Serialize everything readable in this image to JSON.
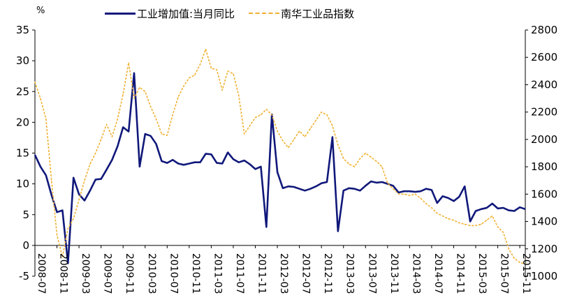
{
  "chart_data": {
    "type": "line",
    "y_unit_label": "%",
    "legend_position": "top",
    "grid": false,
    "x_tick_labels": [
      "2008-07",
      "2008-11",
      "2009-03",
      "2009-07",
      "2009-11",
      "2010-03",
      "2010-07",
      "2010-11",
      "2011-03",
      "2011-07",
      "2011-11",
      "2012-03",
      "2012-07",
      "2012-11",
      "2013-03",
      "2013-07",
      "2013-11",
      "2014-03",
      "2014-07",
      "2014-11",
      "2015-03",
      "2015-07",
      "2015-11"
    ],
    "y_left": {
      "lim": [
        -5,
        35
      ],
      "ticks": [
        -5,
        0,
        5,
        10,
        15,
        20,
        25,
        30,
        35
      ]
    },
    "y_right": {
      "lim": [
        1000,
        2800
      ],
      "ticks": [
        1000,
        1200,
        1400,
        1600,
        1800,
        2000,
        2200,
        2400,
        2600,
        2800
      ]
    },
    "series": [
      {
        "name": "工业增加值:当月同比",
        "axis": "left",
        "color": "#10187a",
        "style": "solid",
        "x": [
          "2008-07",
          "2008-08",
          "2008-09",
          "2008-10",
          "2008-11",
          "2008-12",
          "2009-01",
          "2009-02",
          "2009-03",
          "2009-04",
          "2009-05",
          "2009-06",
          "2009-07",
          "2009-08",
          "2009-09",
          "2009-10",
          "2009-11",
          "2009-12",
          "2010-01",
          "2010-02",
          "2010-03",
          "2010-04",
          "2010-05",
          "2010-06",
          "2010-07",
          "2010-08",
          "2010-09",
          "2010-10",
          "2010-11",
          "2010-12",
          "2011-01",
          "2011-02",
          "2011-03",
          "2011-04",
          "2011-05",
          "2011-06",
          "2011-07",
          "2011-08",
          "2011-09",
          "2011-10",
          "2011-11",
          "2011-12",
          "2012-01",
          "2012-02",
          "2012-03",
          "2012-04",
          "2012-05",
          "2012-06",
          "2012-07",
          "2012-08",
          "2012-09",
          "2012-10",
          "2012-11",
          "2012-12",
          "2013-01",
          "2013-02",
          "2013-03",
          "2013-04",
          "2013-05",
          "2013-06",
          "2013-07",
          "2013-08",
          "2013-09",
          "2013-10",
          "2013-11",
          "2013-12",
          "2014-01",
          "2014-02",
          "2014-03",
          "2014-04",
          "2014-05",
          "2014-06",
          "2014-07",
          "2014-08",
          "2014-09",
          "2014-10",
          "2014-11",
          "2014-12",
          "2015-01",
          "2015-02",
          "2015-03",
          "2015-04",
          "2015-05",
          "2015-06",
          "2015-07",
          "2015-08",
          "2015-09",
          "2015-10",
          "2015-11",
          "2015-12"
        ],
        "values": [
          14.7,
          12.8,
          11.4,
          8.2,
          5.4,
          5.7,
          -2.9,
          11.0,
          8.3,
          7.3,
          8.9,
          10.7,
          10.8,
          12.3,
          13.9,
          16.1,
          19.2,
          18.5,
          28.0,
          12.8,
          18.1,
          17.8,
          16.5,
          13.7,
          13.4,
          13.9,
          13.3,
          13.1,
          13.3,
          13.5,
          13.5,
          14.9,
          14.8,
          13.4,
          13.3,
          15.1,
          14.0,
          13.5,
          13.8,
          13.2,
          12.4,
          12.8,
          3.0,
          21.3,
          11.9,
          9.3,
          9.6,
          9.5,
          9.2,
          8.9,
          9.2,
          9.6,
          10.1,
          10.3,
          17.6,
          2.3,
          8.9,
          9.3,
          9.2,
          8.9,
          9.7,
          10.4,
          10.2,
          10.3,
          10.0,
          9.7,
          8.6,
          8.8,
          8.8,
          8.7,
          8.8,
          9.2,
          9.0,
          6.9,
          8.0,
          7.7,
          7.2,
          7.9,
          9.6,
          3.9,
          5.6,
          5.9,
          6.1,
          6.8,
          6.0,
          6.1,
          5.7,
          5.6,
          6.2,
          5.9
        ]
      },
      {
        "name": "南华工业品指数",
        "axis": "right",
        "color": "#f0b030",
        "style": "dashed",
        "x": [
          "2008-07",
          "2008-08",
          "2008-09",
          "2008-10",
          "2008-11",
          "2008-12",
          "2009-01",
          "2009-02",
          "2009-03",
          "2009-04",
          "2009-05",
          "2009-06",
          "2009-07",
          "2009-08",
          "2009-09",
          "2009-10",
          "2009-11",
          "2009-12",
          "2010-01",
          "2010-02",
          "2010-03",
          "2010-04",
          "2010-05",
          "2010-06",
          "2010-07",
          "2010-08",
          "2010-09",
          "2010-10",
          "2010-11",
          "2010-12",
          "2011-01",
          "2011-02",
          "2011-03",
          "2011-04",
          "2011-05",
          "2011-06",
          "2011-07",
          "2011-08",
          "2011-09",
          "2011-10",
          "2011-11",
          "2011-12",
          "2012-01",
          "2012-02",
          "2012-03",
          "2012-04",
          "2012-05",
          "2012-06",
          "2012-07",
          "2012-08",
          "2012-09",
          "2012-10",
          "2012-11",
          "2012-12",
          "2013-01",
          "2013-02",
          "2013-03",
          "2013-04",
          "2013-05",
          "2013-06",
          "2013-07",
          "2013-08",
          "2013-09",
          "2013-10",
          "2013-11",
          "2013-12",
          "2014-01",
          "2014-02",
          "2014-03",
          "2014-04",
          "2014-05",
          "2014-06",
          "2014-07",
          "2014-08",
          "2014-09",
          "2014-10",
          "2014-11",
          "2014-12",
          "2015-01",
          "2015-02",
          "2015-03",
          "2015-04",
          "2015-05",
          "2015-06",
          "2015-07",
          "2015-08",
          "2015-09",
          "2015-10",
          "2015-11",
          "2015-12"
        ],
        "values": [
          2420,
          2300,
          2150,
          1700,
          1300,
          1140,
          1350,
          1420,
          1560,
          1700,
          1820,
          1900,
          2000,
          2110,
          2020,
          2150,
          2330,
          2560,
          2300,
          2380,
          2350,
          2240,
          2150,
          2040,
          2030,
          2180,
          2310,
          2390,
          2450,
          2470,
          2550,
          2660,
          2520,
          2510,
          2360,
          2500,
          2480,
          2320,
          2040,
          2100,
          2160,
          2180,
          2220,
          2180,
          2060,
          1990,
          1940,
          2000,
          2060,
          2020,
          2080,
          2140,
          2200,
          2180,
          2100,
          1960,
          1860,
          1820,
          1800,
          1860,
          1900,
          1870,
          1840,
          1800,
          1680,
          1640,
          1600,
          1600,
          1590,
          1600,
          1570,
          1530,
          1500,
          1460,
          1440,
          1420,
          1410,
          1390,
          1380,
          1370,
          1370,
          1380,
          1410,
          1440,
          1360,
          1320,
          1200,
          1130,
          1100,
          1090
        ]
      }
    ]
  }
}
